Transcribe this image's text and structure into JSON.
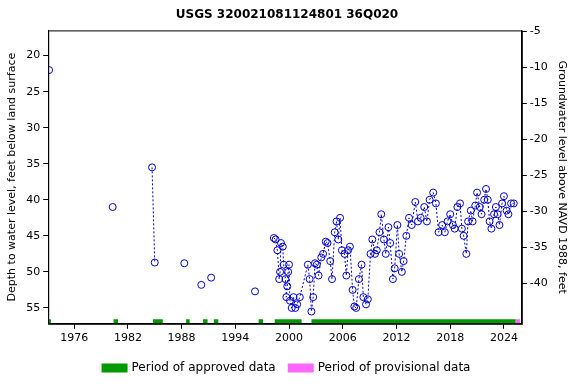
{
  "chart_data": {
    "type": "scatter",
    "title": "USGS 320021081124801 36Q020",
    "y_label": "Depth to water level, feet below land surface",
    "y2_label": "Groundwater level above NAVD 1988, feet",
    "xlim": [
      1973.1,
      2026.0
    ],
    "xticks": [
      1976,
      1982,
      1988,
      1994,
      2000,
      2006,
      2012,
      2018,
      2024
    ],
    "ylim": [
      16.5,
      57.2
    ],
    "yticks": [
      20,
      25,
      30,
      35,
      40,
      45,
      50,
      55
    ],
    "y2lim": [
      -4.9,
      -45.6
    ],
    "y2ticks": [
      -5,
      -10,
      -15,
      -20,
      -25,
      -30,
      -35,
      -40
    ],
    "grid": false,
    "legend": "bottom",
    "series": [
      {
        "color": "#0000cc",
        "marker": "circle",
        "line_style": "dotted",
        "x": [
          1973.2,
          null,
          1980.3,
          null,
          1984.7,
          1985.0,
          null,
          1988.3,
          null,
          1990.2,
          null,
          1991.3,
          null,
          1996.2,
          null,
          1998.3,
          1998.5,
          1998.7,
          1998.9,
          1999.0,
          1999.1,
          1999.3,
          1999.4,
          1999.6,
          1999.7,
          1999.8,
          1999.9,
          2000.0,
          2000.1,
          2000.3,
          2000.5,
          2000.7,
          2000.9,
          2001.2,
          2002.1,
          2002.3,
          2002.5,
          2002.7,
          2002.9,
          2003.1,
          2003.3,
          2003.6,
          2003.8,
          2004.1,
          2004.3,
          2004.6,
          2004.8,
          2005.1,
          2005.3,
          2005.5,
          2005.7,
          2005.9,
          2006.2,
          2006.4,
          2006.6,
          2006.8,
          2007.1,
          2007.3,
          2007.5,
          2007.8,
          2008.1,
          2008.3,
          2008.6,
          2008.8,
          2009.1,
          2009.3,
          2009.6,
          2009.8,
          2010.1,
          2010.3,
          2010.6,
          2010.8,
          2011.1,
          2011.3,
          2011.6,
          2011.8,
          2012.1,
          2012.3,
          2012.6,
          2012.8,
          2013.1,
          2013.4,
          2013.7,
          2014.1,
          2014.4,
          2014.7,
          2015.1,
          2015.4,
          2015.7,
          2016.1,
          2016.4,
          2016.7,
          2017.1,
          2017.4,
          2017.7,
          2018.0,
          2018.3,
          2018.5,
          2018.8,
          2019.1,
          2019.3,
          2019.5,
          2019.8,
          2020.0,
          2020.3,
          2020.5,
          2020.8,
          2021.0,
          2021.3,
          2021.5,
          2021.8,
          2022.0,
          2022.2,
          2022.4,
          2022.6,
          2022.9,
          2023.1,
          2023.3,
          2023.5,
          2023.8,
          2024.0,
          2024.3,
          2024.5,
          2024.8,
          2025.1
        ],
        "values": [
          22,
          null,
          41,
          null,
          35.5,
          48.7,
          null,
          48.8,
          null,
          51.8,
          null,
          50.8,
          null,
          52.7,
          null,
          45.3,
          45.5,
          47,
          51,
          50,
          46,
          46.5,
          49,
          51,
          53.5,
          52,
          50,
          49,
          54,
          55,
          53.5,
          55,
          54.5,
          53.5,
          49,
          51,
          55.5,
          53.5,
          48.8,
          49,
          50.5,
          48,
          47.5,
          45.8,
          46,
          48.5,
          51,
          44.5,
          43,
          45.5,
          42.5,
          47,
          47.5,
          50.5,
          47,
          46.5,
          52.5,
          54.8,
          55,
          51,
          49,
          53.5,
          54.5,
          53.8,
          47.5,
          45.5,
          47.5,
          47,
          44.5,
          42,
          45.5,
          47.5,
          43.8,
          46,
          51,
          49.5,
          43.5,
          47.5,
          50,
          48.5,
          45,
          42.5,
          43.5,
          40.3,
          43,
          42.5,
          41,
          43,
          40,
          39,
          40.5,
          44.5,
          43.5,
          44.5,
          43,
          42,
          43.5,
          44,
          41,
          40.5,
          44,
          45,
          47.5,
          43,
          41.5,
          43,
          40.8,
          39,
          41,
          42,
          40,
          38.5,
          40,
          43,
          44,
          42,
          41,
          42,
          43.5,
          40.5,
          39.5,
          41.5,
          42,
          40.5,
          40.5
        ]
      },
      {
        "name": "Period of approved data",
        "type": "period",
        "color": "#009900",
        "periods": [
          [
            1973.1,
            1973.4
          ],
          [
            1980.4,
            1980.9
          ],
          [
            1984.8,
            1985.9
          ],
          [
            1988.5,
            1988.9
          ],
          [
            1990.4,
            1990.9
          ],
          [
            1991.6,
            1992.1
          ],
          [
            1996.6,
            1997.1
          ],
          [
            1998.4,
            2001.4
          ],
          [
            2002.5,
            2025.3
          ]
        ]
      },
      {
        "name": "Period of provisional data",
        "type": "period",
        "color": "#ff66ff",
        "periods": [
          [
            2025.3,
            2025.8
          ]
        ]
      }
    ]
  }
}
